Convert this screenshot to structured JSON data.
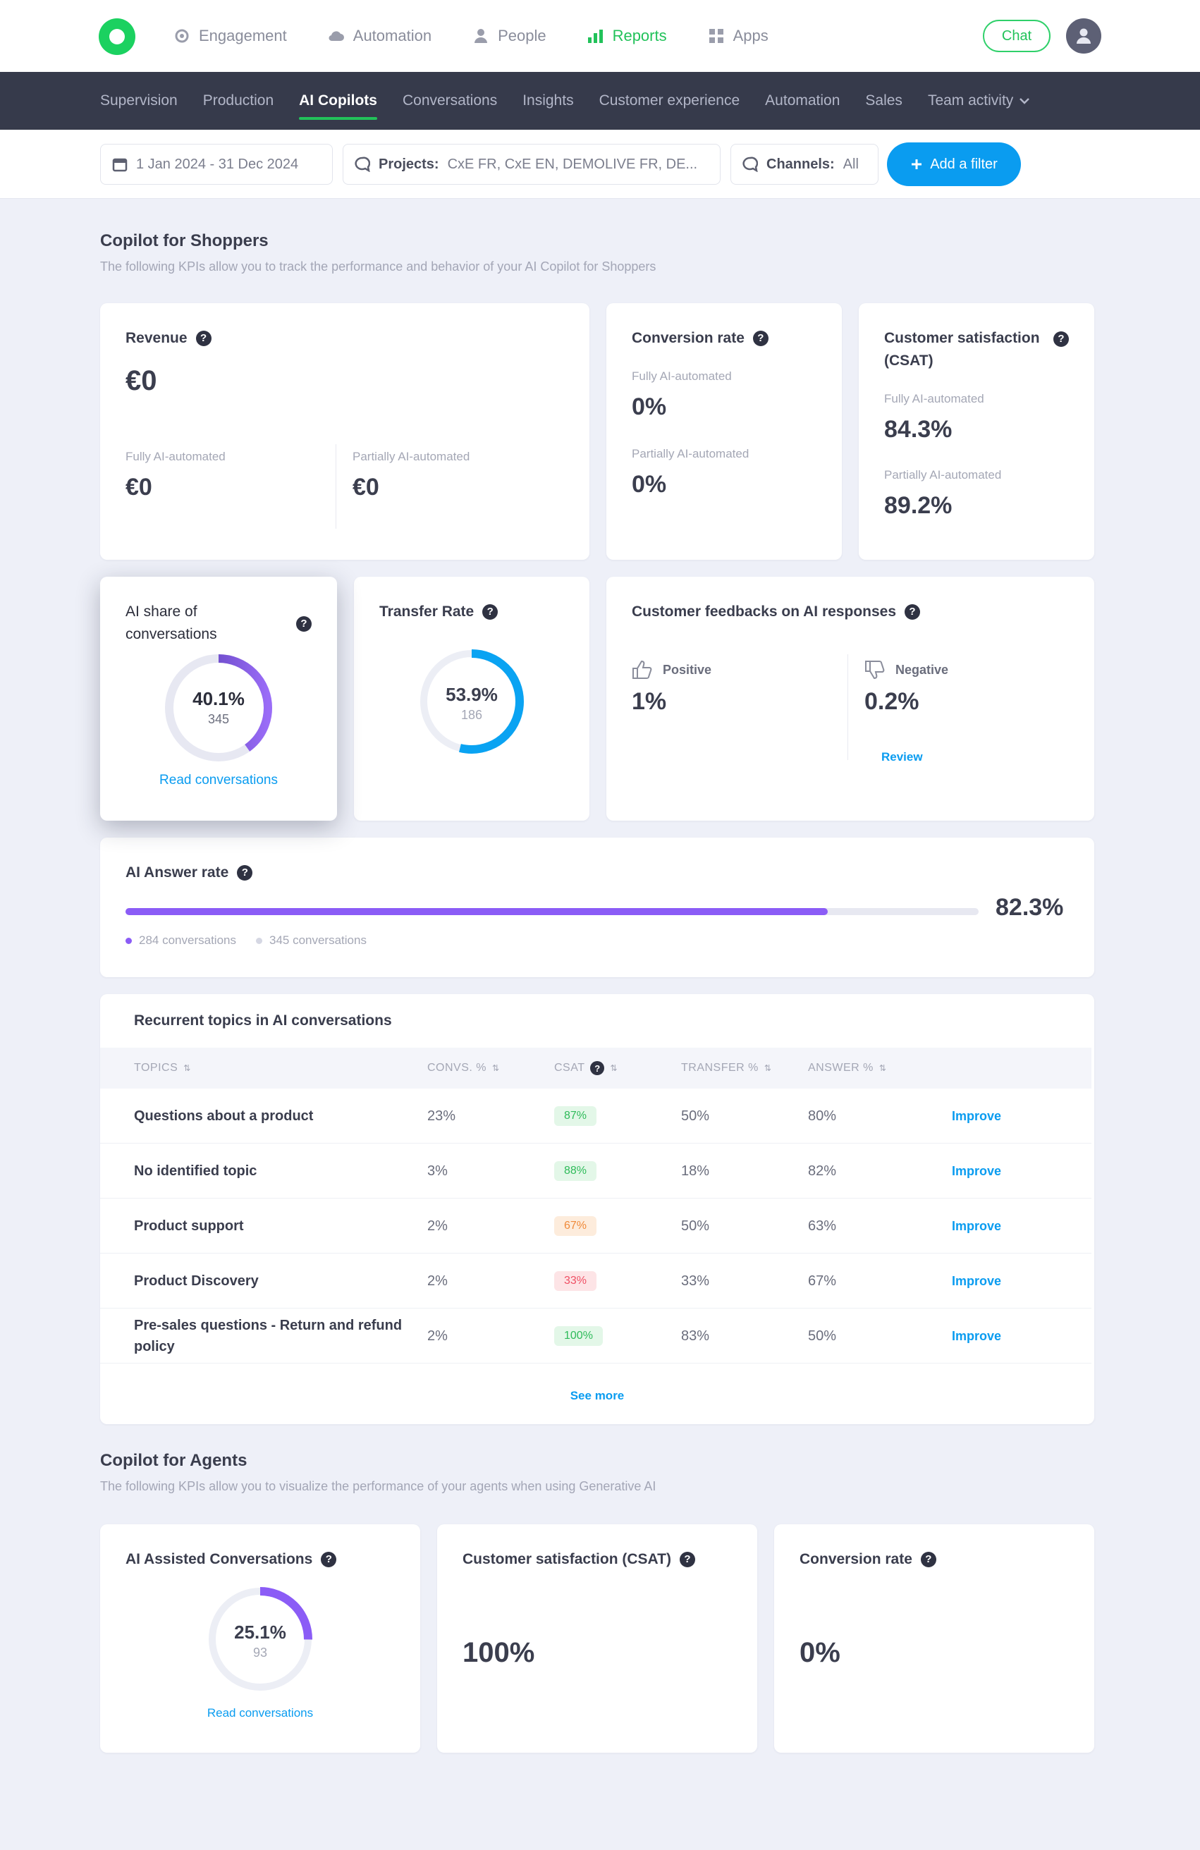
{
  "topnav": {
    "items": [
      {
        "label": "Engagement",
        "icon": "gear-icon"
      },
      {
        "label": "Automation",
        "icon": "cloud-icon"
      },
      {
        "label": "People",
        "icon": "person-icon"
      },
      {
        "label": "Reports",
        "icon": "bar-chart-icon",
        "active": true
      },
      {
        "label": "Apps",
        "icon": "grid-icon"
      }
    ],
    "chat_label": "Chat"
  },
  "subnav": {
    "items": [
      {
        "label": "Supervision"
      },
      {
        "label": "Production"
      },
      {
        "label": "AI Copilots",
        "active": true
      },
      {
        "label": "Conversations"
      },
      {
        "label": "Insights"
      },
      {
        "label": "Customer experience"
      },
      {
        "label": "Automation"
      },
      {
        "label": "Sales"
      },
      {
        "label": "Team activity"
      }
    ]
  },
  "filters": {
    "date": "1 Jan 2024 - 31 Dec 2024",
    "projects_label": "Projects:",
    "projects_value": "CxE FR, CxE EN, DEMOLIVE FR, DE...",
    "channels_label": "Channels:",
    "channels_value": "All",
    "add_filter_label": "Add a filter"
  },
  "shoppers": {
    "title": "Copilot for Shoppers",
    "subtitle": "The following KPIs allow you to track the performance and behavior of your AI Copilot for Shoppers",
    "revenue": {
      "title": "Revenue",
      "total": "€0",
      "fully_label": "Fully AI-automated",
      "fully_value": "€0",
      "partially_label": "Partially AI-automated",
      "partially_value": "€0"
    },
    "conversion": {
      "title": "Conversion rate",
      "fully_label": "Fully AI-automated",
      "fully_value": "0%",
      "partially_label": "Partially AI-automated",
      "partially_value": "0%"
    },
    "csat": {
      "title": "Customer satisfaction (CSAT)",
      "fully_label": "Fully AI-automated",
      "fully_value": "84.3%",
      "partially_label": "Partially AI-automated",
      "partially_value": "89.2%"
    },
    "ai_share": {
      "title": "AI share of conversations",
      "value": "40.1%",
      "count": "345",
      "fraction": 0.401,
      "link": "Read conversations"
    },
    "transfer": {
      "title": "Transfer Rate",
      "value": "53.9%",
      "count": "186",
      "fraction": 0.539
    },
    "feedback": {
      "title": "Customer feedbacks on AI responses",
      "positive_label": "Positive",
      "positive_value": "1%",
      "negative_label": "Negative",
      "negative_value": "0.2%",
      "review_label": "Review"
    },
    "answer_rate": {
      "title": "AI Answer rate",
      "value": "82.3%",
      "fraction": 0.823,
      "legend_answered": "284 conversations",
      "legend_total": "345 conversations"
    },
    "topics": {
      "title": "Recurrent topics in AI conversations",
      "headers": {
        "topics": "Topics",
        "convs": "Convs. %",
        "csat": "CSAT",
        "transfer": "Transfer %",
        "answer": "Answer %"
      },
      "rows": [
        {
          "topic": "Questions about a product",
          "convs": "23%",
          "csat": "87%",
          "csat_level": "good",
          "transfer": "50%",
          "answer": "80%",
          "action": "Improve"
        },
        {
          "topic": "No identified topic",
          "convs": "3%",
          "csat": "88%",
          "csat_level": "good",
          "transfer": "18%",
          "answer": "82%",
          "action": "Improve"
        },
        {
          "topic": "Product support",
          "convs": "2%",
          "csat": "67%",
          "csat_level": "warn",
          "transfer": "50%",
          "answer": "63%",
          "action": "Improve"
        },
        {
          "topic": "Product Discovery",
          "convs": "2%",
          "csat": "33%",
          "csat_level": "bad",
          "transfer": "33%",
          "answer": "67%",
          "action": "Improve"
        },
        {
          "topic": "Pre-sales questions - Return and refund policy",
          "convs": "2%",
          "csat": "100%",
          "csat_level": "good",
          "transfer": "83%",
          "answer": "50%",
          "action": "Improve"
        }
      ],
      "see_more": "See more"
    }
  },
  "agents": {
    "title": "Copilot for Agents",
    "subtitle": "The following KPIs allow you to visualize the performance of your agents when using Generative AI",
    "assisted": {
      "title": "AI Assisted Conversations",
      "value": "25.1%",
      "count": "93",
      "fraction": 0.251,
      "link": "Read conversations"
    },
    "csat": {
      "title": "Customer satisfaction (CSAT)",
      "value": "100%"
    },
    "conversion": {
      "title": "Conversion rate",
      "value": "0%"
    }
  },
  "colors": {
    "brand_green": "#22c25a",
    "accent_blue": "#0a9cf0",
    "purple": "#8b5cf6",
    "purple_dark": "#4c35a8"
  }
}
